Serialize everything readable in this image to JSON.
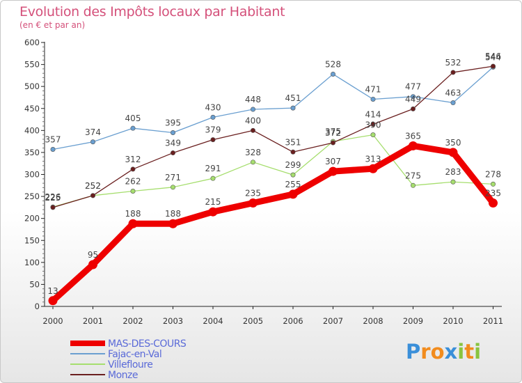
{
  "chart_data": {
    "type": "line",
    "title": "Evolution des Impôts locaux par Habitant",
    "subtitle": "(en € et par an)",
    "categories": [
      "2000",
      "2001",
      "2002",
      "2003",
      "2004",
      "2005",
      "2006",
      "2007",
      "2008",
      "2009",
      "2010",
      "2011"
    ],
    "y_ticks": [
      0,
      50,
      100,
      150,
      200,
      250,
      300,
      350,
      400,
      450,
      500,
      550,
      600
    ],
    "ylim": [
      0,
      600
    ],
    "grid": false,
    "legend_position": "bottom-left",
    "series": [
      {
        "name": "MAS-DES-COURS",
        "color": "#ee0000",
        "emphasis": true,
        "values": [
          13,
          95,
          188,
          188,
          215,
          235,
          255,
          307,
          313,
          365,
          350,
          235
        ]
      },
      {
        "name": "Fajac-en-Val",
        "color": "#6a9fd0",
        "emphasis": false,
        "values": [
          357,
          374,
          405,
          395,
          430,
          448,
          451,
          528,
          471,
          477,
          463,
          544
        ]
      },
      {
        "name": "Villefloure",
        "color": "#a6de6e",
        "emphasis": false,
        "values": [
          226,
          252,
          262,
          271,
          291,
          328,
          299,
          375,
          390,
          275,
          283,
          278
        ]
      },
      {
        "name": "Monze",
        "color": "#6a1f1f",
        "emphasis": false,
        "values": [
          225,
          252,
          312,
          349,
          379,
          400,
          351,
          372,
          414,
          449,
          532,
          546
        ]
      }
    ]
  },
  "logo": {
    "text": "Proxiti",
    "letters": [
      {
        "ch": "P",
        "color": "#3a8fd9"
      },
      {
        "ch": "r",
        "color": "#f28c1e"
      },
      {
        "ch": "o",
        "color": "#f28c1e"
      },
      {
        "ch": "x",
        "color": "#3a8fd9"
      },
      {
        "ch": "i",
        "color": "#89c43f"
      },
      {
        "ch": "t",
        "color": "#f28c1e"
      },
      {
        "ch": "i",
        "color": "#89c43f"
      }
    ]
  }
}
